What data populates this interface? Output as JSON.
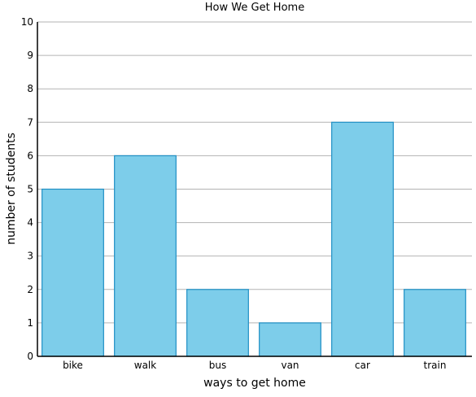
{
  "chart_data": {
    "type": "bar",
    "title": "How We Get Home",
    "xlabel": "ways to get home",
    "ylabel": "number of students",
    "categories": [
      "bike",
      "walk",
      "bus",
      "van",
      "car",
      "train"
    ],
    "values": [
      5,
      6,
      2,
      1,
      7,
      2
    ],
    "ylim": [
      0,
      10
    ],
    "yticks": [
      0,
      1,
      2,
      3,
      4,
      5,
      6,
      7,
      8,
      9,
      10
    ],
    "grid": true,
    "legend": "none",
    "colors": {
      "bar_fill": "#7dcdea",
      "bar_stroke": "#1f8fc4",
      "grid": "#b3b3b3",
      "axis": "#000000"
    }
  }
}
